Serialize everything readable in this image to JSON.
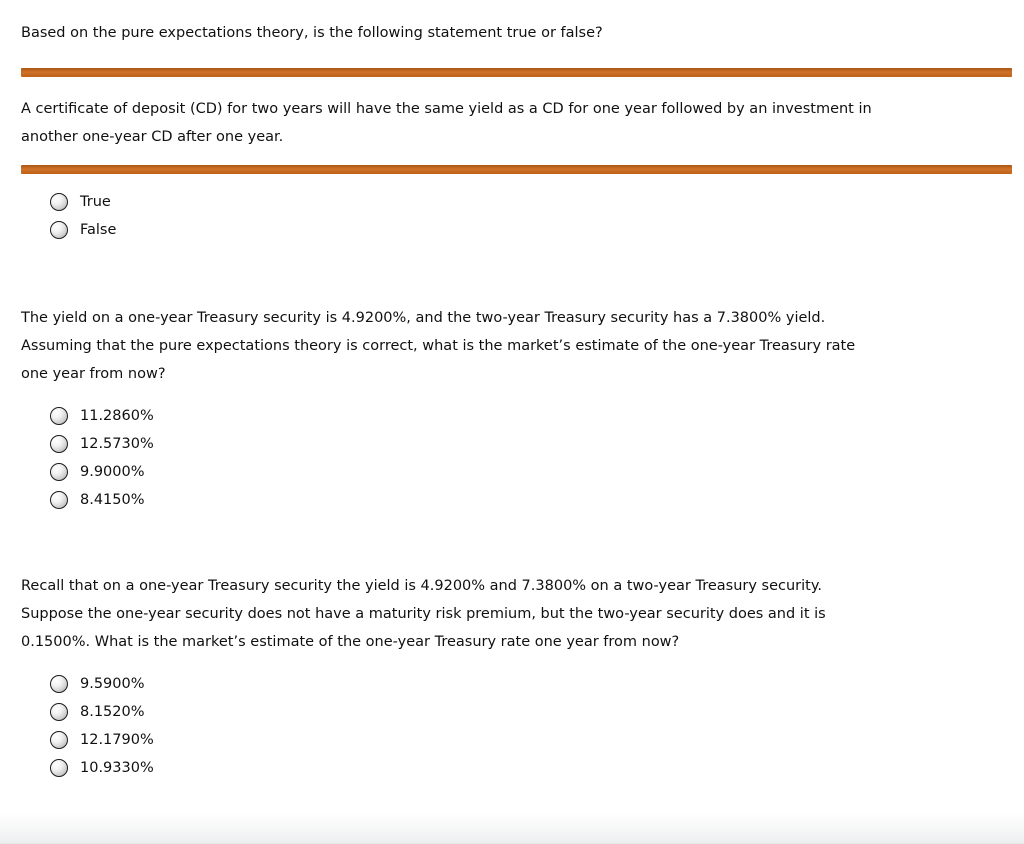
{
  "page": {
    "background_color": "#ffffff",
    "divider_color": "#c2661f"
  },
  "question1": {
    "prompt": "Based on the pure expectations theory, is the following statement true or false?",
    "statement_lines": [
      "A certificate of deposit (CD) for two years will have the same yield as a CD for one year followed by an investment in",
      "another one-year CD after one year."
    ],
    "options": [
      {
        "label": "True"
      },
      {
        "label": "False"
      }
    ]
  },
  "question2": {
    "prompt_lines": [
      "The yield on a one-year Treasury security is 4.9200%, and the two-year Treasury security has a 7.3800% yield.",
      "Assuming that the pure expectations theory is correct, what is the market’s estimate of the one-year Treasury rate",
      "one year from now?"
    ],
    "options": [
      {
        "label": "11.2860%"
      },
      {
        "label": "12.5730%"
      },
      {
        "label": "9.9000%"
      },
      {
        "label": "8.4150%"
      }
    ]
  },
  "question3": {
    "prompt_lines": [
      "Recall that on a one-year Treasury security the yield is 4.9200% and 7.3800% on a two-year Treasury security.",
      "Suppose the one-year security does not have a maturity risk premium, but the two-year security does and it is",
      "0.1500%. What is the market’s estimate of the one-year Treasury rate one year from now?"
    ],
    "options": [
      {
        "label": "9.5900%"
      },
      {
        "label": "8.1520%"
      },
      {
        "label": "12.1790%"
      },
      {
        "label": "10.9330%"
      }
    ]
  }
}
